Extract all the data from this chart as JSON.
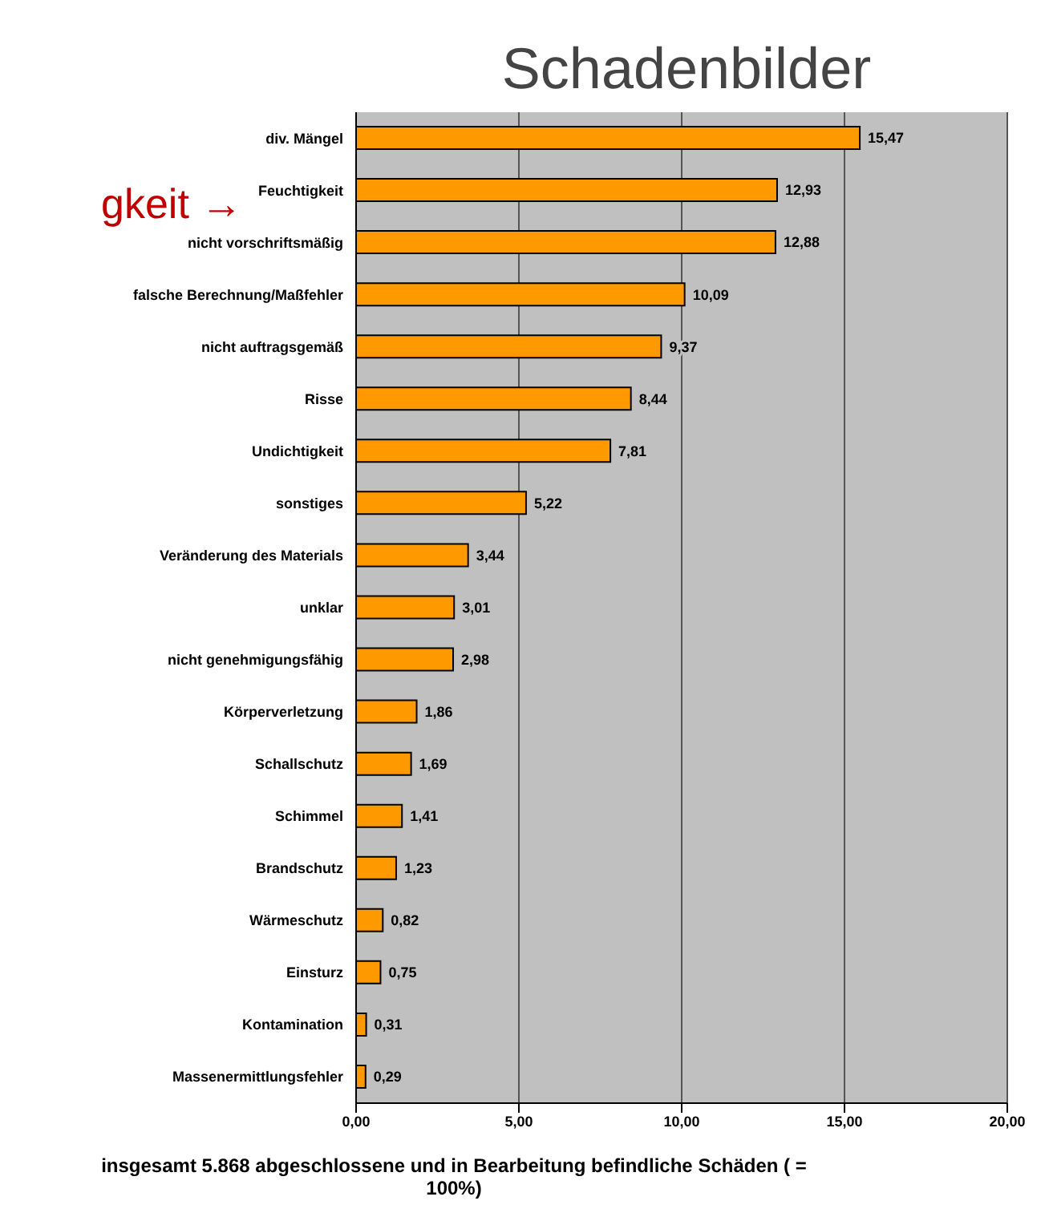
{
  "chart_data": {
    "type": "bar",
    "orientation": "horizontal",
    "title": "Schadenbilder",
    "categories": [
      "div. Mängel",
      "Feuchtigkeit",
      "nicht vorschriftsmäßig",
      "falsche Berechnung/Maßfehler",
      "nicht auftragsgemäß",
      "Risse",
      "Undichtigkeit",
      "sonstiges",
      "Veränderung des Materials",
      "unklar",
      "nicht genehmigungsfähig",
      "Körperverletzung",
      "Schallschutz",
      "Schimmel",
      "Brandschutz",
      "Wärmeschutz",
      "Einsturz",
      "Kontamination",
      "Massenermittlungsfehler"
    ],
    "values": [
      15.47,
      12.93,
      12.88,
      10.09,
      9.37,
      8.44,
      7.81,
      5.22,
      3.44,
      3.01,
      2.98,
      1.86,
      1.69,
      1.41,
      1.23,
      0.82,
      0.75,
      0.31,
      0.29
    ],
    "value_labels": [
      "15,47",
      "12,93",
      "12,88",
      "10,09",
      "9,37",
      "8,44",
      "7,81",
      "5,22",
      "3,44",
      "3,01",
      "2,98",
      "1,86",
      "1,69",
      "1,41",
      "1,23",
      "0,82",
      "0,75",
      "0,31",
      "0,29"
    ],
    "color": "#ff9900",
    "xlim": [
      0,
      20
    ],
    "xticks": [
      {
        "value": 0,
        "label": "0,00"
      },
      {
        "value": 5,
        "label": "5,00"
      },
      {
        "value": 10,
        "label": "10,00"
      },
      {
        "value": 15,
        "label": "15,00"
      },
      {
        "value": 20,
        "label": "20,00"
      }
    ],
    "grid": "x",
    "legend": false,
    "annotations": [
      "gkeit →",
      "insgesamt 5.868 abgeschlossene und in Bearbeitung befindliche Schäden ( = 100%)"
    ]
  }
}
